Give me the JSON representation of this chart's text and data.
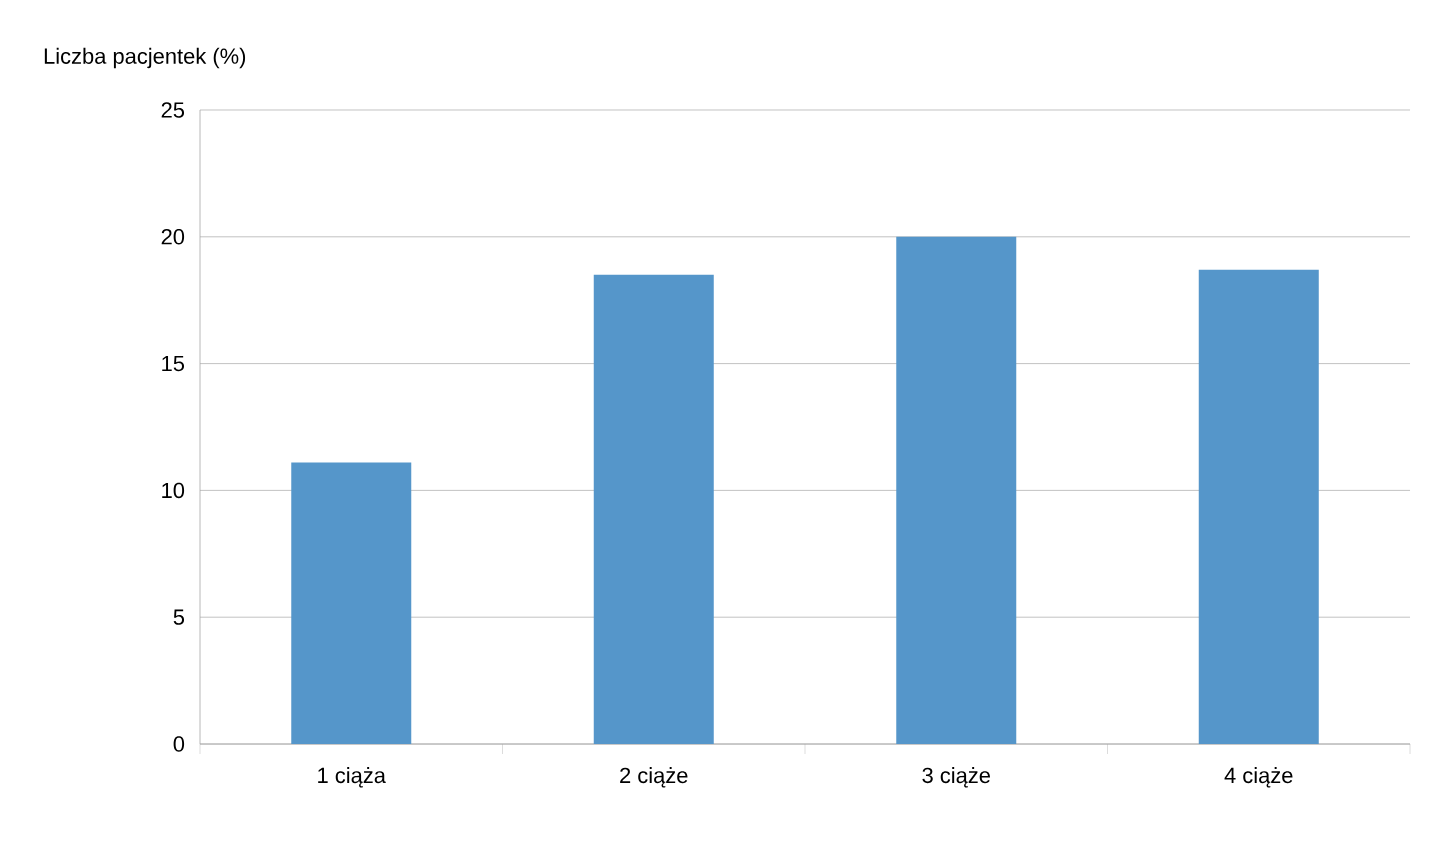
{
  "chart_data": {
    "type": "bar",
    "ylabel": "Liczba pacjentek (%)",
    "categories": [
      "1 ciąża",
      "2 ciąże",
      "3 ciąże",
      "4 ciąże"
    ],
    "values": [
      11.1,
      18.5,
      20.0,
      18.7
    ],
    "color": "#5596ca",
    "ylim": [
      0,
      25
    ],
    "yticks": [
      0,
      5,
      10,
      15,
      20,
      25
    ],
    "grid": "y"
  }
}
